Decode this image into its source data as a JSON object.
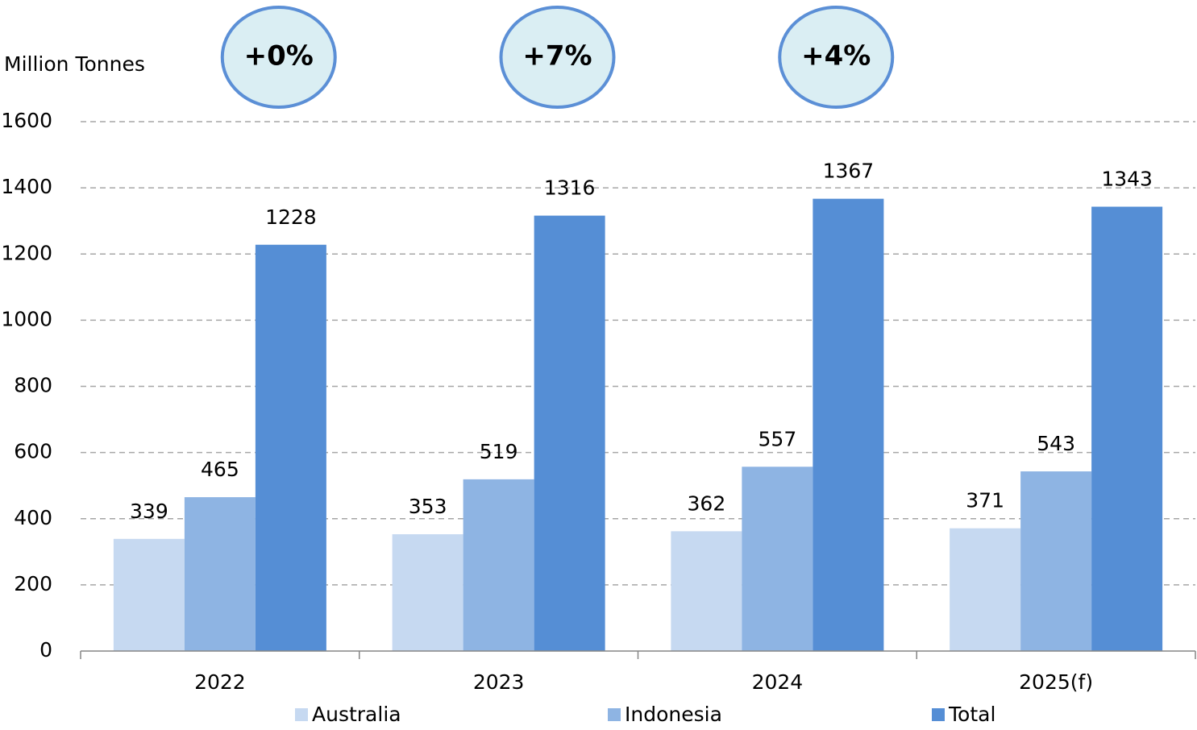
{
  "chart_data": {
    "type": "bar",
    "y_axis_label": "Million Tonnes",
    "categories": [
      "2022",
      "2023",
      "2024",
      "2025(f)"
    ],
    "series": [
      {
        "name": "Australia",
        "color": "#c6d9f1",
        "values": [
          339,
          353,
          362,
          371
        ]
      },
      {
        "name": "Indonesia",
        "color": "#8eb4e3",
        "values": [
          465,
          519,
          557,
          543
        ]
      },
      {
        "name": "Total",
        "color": "#558ed5",
        "values": [
          1228,
          1316,
          1367,
          1343
        ]
      }
    ],
    "annotations": [
      "+0%",
      "+7%",
      "+4%"
    ],
    "ylim": [
      0,
      1600
    ],
    "yticks": [
      0,
      200,
      400,
      600,
      800,
      1000,
      1200,
      1400,
      1600
    ],
    "grid": true,
    "legend": "bottom"
  }
}
